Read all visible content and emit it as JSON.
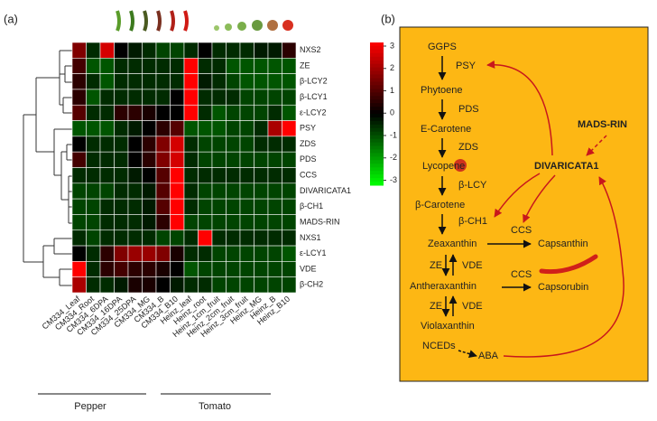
{
  "chart_data": {
    "type": "heatmap",
    "panel_label": "(a)",
    "rows": [
      "NXS2",
      "ZE",
      "β-LCY2",
      "β-LCY1",
      "ε-LCY2",
      "PSY",
      "ZDS",
      "PDS",
      "CCS",
      "DIVARICATA1",
      "β-CH1",
      "MADS-RIN",
      "NXS1",
      "ε-LCY1",
      "VDE",
      "β-CH2"
    ],
    "columns": [
      "CM334_Leaf",
      "CM334_Root",
      "CM334_6DPA",
      "CM334_16DPA",
      "CM334_25DPA",
      "CM334_MG",
      "CM334_B",
      "CM334_B10",
      "Heinz_leaf",
      "Heinz_root",
      "Heinz_1cm_fruit",
      "Heinz_2cm_fruit",
      "Heinz_3cm_fruit",
      "Heinz_MG",
      "Heinz_B",
      "Heinz_B10"
    ],
    "values": [
      [
        1.5,
        -0.5,
        2.5,
        0,
        -0.3,
        -0.5,
        -0.8,
        -0.8,
        -0.5,
        0,
        -0.5,
        -0.5,
        -0.5,
        -0.3,
        -0.3,
        0.5
      ],
      [
        0.8,
        -1,
        -1,
        -0.5,
        -0.5,
        -0.5,
        -0.5,
        -0.5,
        3,
        -0.5,
        -0.5,
        -1,
        -1,
        -1,
        -1,
        -1
      ],
      [
        0.5,
        -0.5,
        -1,
        -0.5,
        -0.5,
        -0.5,
        -0.5,
        -0.5,
        3,
        -0.3,
        -0.5,
        -0.8,
        -1,
        -1,
        -1,
        -1
      ],
      [
        0.5,
        -1,
        -0.5,
        -0.5,
        -0.5,
        -0.5,
        -0.5,
        0,
        3,
        -0.5,
        -0.5,
        -0.5,
        -0.8,
        -0.8,
        -0.8,
        -0.8
      ],
      [
        1,
        -0.5,
        -0.5,
        0.5,
        0.5,
        0.3,
        0,
        0,
        3,
        -0.5,
        -1,
        -0.8,
        -0.8,
        -0.8,
        -0.5,
        -1
      ],
      [
        -1,
        -1,
        -1,
        -0.5,
        -0.3,
        0,
        0.5,
        1,
        -1,
        -1,
        -1,
        -0.8,
        -0.8,
        -0.5,
        2,
        3
      ],
      [
        0,
        -0.5,
        -0.5,
        -0.5,
        0,
        0.5,
        1.5,
        2.5,
        -0.5,
        -0.8,
        -0.8,
        -0.8,
        -0.8,
        -0.5,
        -0.5,
        -0.5
      ],
      [
        0.8,
        -0.5,
        -0.5,
        -0.5,
        0,
        0.5,
        1.5,
        2.5,
        -0.5,
        -0.8,
        -0.8,
        -0.8,
        -0.8,
        -0.8,
        -0.8,
        -0.8
      ],
      [
        -0.5,
        -0.5,
        -0.5,
        -0.5,
        -0.3,
        0,
        1,
        3,
        -0.5,
        -0.5,
        -0.5,
        -0.5,
        -0.5,
        -0.5,
        -0.5,
        -0.5
      ],
      [
        -0.8,
        -0.8,
        -0.8,
        -0.5,
        -0.5,
        -0.3,
        1,
        3,
        -0.5,
        -0.8,
        -0.8,
        -0.8,
        -0.8,
        -0.8,
        -0.8,
        -0.8
      ],
      [
        -0.8,
        -0.8,
        -0.5,
        -0.5,
        -0.5,
        -0.3,
        1,
        3,
        -0.5,
        -0.8,
        -0.8,
        -0.8,
        -0.8,
        -0.8,
        -0.8,
        -0.8
      ],
      [
        -0.8,
        -0.8,
        -0.5,
        -0.5,
        -0.5,
        -0.3,
        0.5,
        3,
        -0.8,
        -0.8,
        -0.8,
        -0.8,
        -0.8,
        -0.8,
        -0.8,
        -0.8
      ],
      [
        -0.5,
        -0.8,
        -0.5,
        -0.5,
        -0.5,
        -0.5,
        -0.8,
        -0.8,
        -0.5,
        3,
        -0.5,
        -0.5,
        -0.5,
        -0.5,
        -0.5,
        -0.5
      ],
      [
        0,
        -0.5,
        0.5,
        1.5,
        1.8,
        1.8,
        1.5,
        0.3,
        -0.5,
        -0.5,
        -0.8,
        -0.8,
        -0.8,
        -0.8,
        -0.8,
        -1
      ],
      [
        3,
        -0.5,
        0.5,
        0.8,
        0.5,
        0.5,
        0.3,
        0,
        -1,
        -0.8,
        -0.8,
        -0.8,
        -0.8,
        -0.8,
        -0.8,
        -0.8
      ],
      [
        2,
        -0.5,
        -0.5,
        -0.3,
        0.3,
        0.3,
        0,
        -0.3,
        -0.5,
        -0.5,
        -0.8,
        -0.8,
        -0.8,
        -0.8,
        -0.8,
        -0.8
      ]
    ],
    "zlim": [
      -3,
      3
    ],
    "zticks": [
      3,
      2,
      1,
      0,
      -1,
      -2,
      -3
    ],
    "colors": [
      "#00ff00",
      "#000000",
      "#ff0000"
    ],
    "groups": [
      "Pepper",
      "Tomato"
    ]
  },
  "diagram": {
    "panel_label": "(b)",
    "nodes": [
      {
        "label": "GGPS"
      },
      {
        "label": "PSY"
      },
      {
        "label": "Phytoene"
      },
      {
        "label": "PDS"
      },
      {
        "label": "E-Carotene"
      },
      {
        "label": "ZDS"
      },
      {
        "label": "Lycopene"
      },
      {
        "label": "β-LCY"
      },
      {
        "label": "β-Carotene"
      },
      {
        "label": "β-CH1",
        "color": "#e0201a"
      },
      {
        "label": "Zeaxanthin"
      },
      {
        "label": "ZE"
      },
      {
        "label": "VDE"
      },
      {
        "label": "Antheraxanthin"
      },
      {
        "label": "ZE"
      },
      {
        "label": "VDE"
      },
      {
        "label": "Violaxanthin"
      },
      {
        "label": "NCEDs"
      },
      {
        "label": "ABA"
      },
      {
        "label": "CCS",
        "color": "#e0201a"
      },
      {
        "label": "Capsanthin"
      },
      {
        "label": "CCS",
        "color": "#e0201a"
      },
      {
        "label": "Capsorubin"
      },
      {
        "label": "MADS-RIN",
        "color": "#c8171c"
      },
      {
        "label": "DIVARICATA1",
        "color": "#c8171c"
      }
    ]
  }
}
